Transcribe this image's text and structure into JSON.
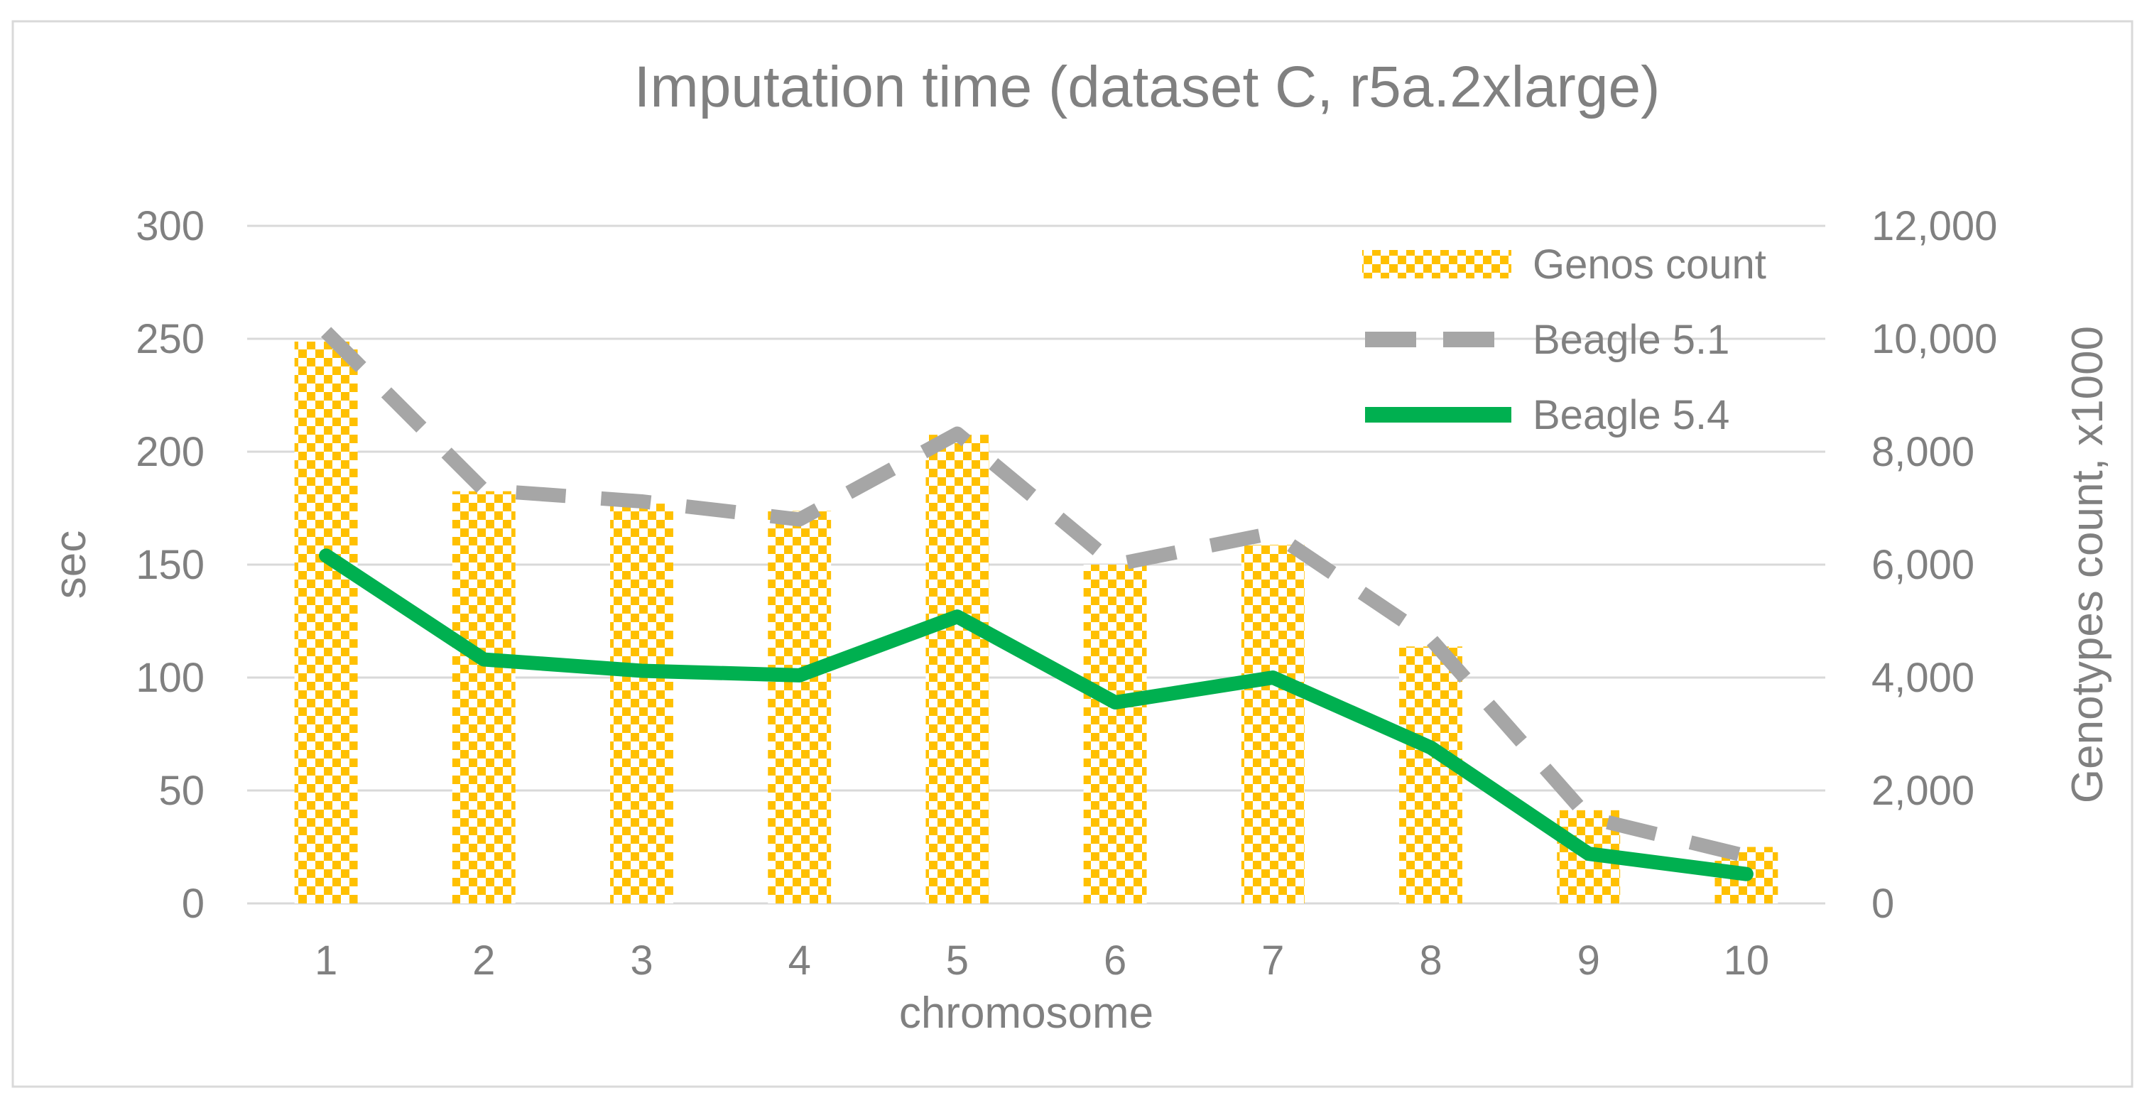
{
  "colors": {
    "grid": "#d9d9d9",
    "axis_text": "#808080",
    "bar": "#ffc000",
    "beagle51": "#a6a6a6",
    "beagle54": "#00b050",
    "border": "#d9d9d9"
  },
  "chart_data": {
    "type": "bar",
    "title": "Imputation time (dataset C, r5a.2xlarge)",
    "xlabel": "chromosome",
    "ylabel": "sec",
    "y2label": "Genotypes count, x1000",
    "categories": [
      "1",
      "2",
      "3",
      "4",
      "5",
      "6",
      "7",
      "8",
      "9",
      "10"
    ],
    "ylim": [
      0,
      300
    ],
    "y2lim": [
      0,
      12000
    ],
    "yticks": [
      "0",
      "50",
      "100",
      "150",
      "200",
      "250",
      "300"
    ],
    "y2ticks": [
      "0",
      "2,000",
      "4,000",
      "6,000",
      "8,000",
      "10,000",
      "12,000"
    ],
    "legend_position": "top-right",
    "series": [
      {
        "name": "Genos count",
        "type": "bar",
        "axis": "right",
        "values": [
          9950,
          7300,
          7080,
          6950,
          8300,
          6000,
          6350,
          4550,
          1650,
          1000
        ]
      },
      {
        "name": "Beagle 5.1",
        "type": "line",
        "style": "dashed",
        "axis": "left",
        "values": [
          253,
          183,
          178,
          170,
          208,
          150,
          164,
          117,
          38,
          21
        ]
      },
      {
        "name": "Beagle 5.4",
        "type": "line",
        "style": "solid",
        "axis": "left",
        "values": [
          154,
          108,
          103,
          101,
          127,
          89,
          100,
          69,
          22,
          13
        ]
      }
    ]
  }
}
